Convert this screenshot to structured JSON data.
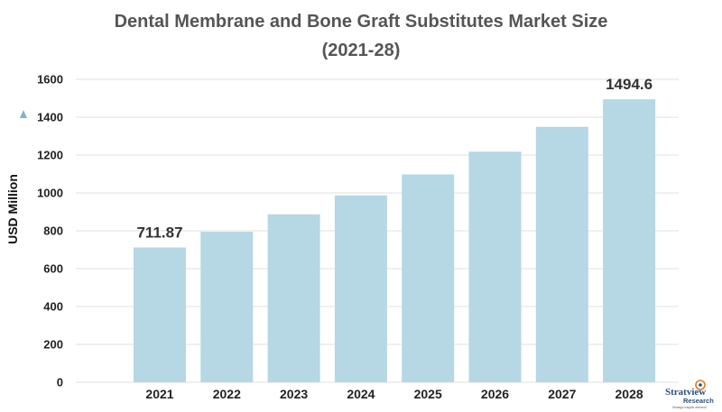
{
  "chart_data": {
    "type": "bar",
    "title": "Dental Membrane and Bone Graft Substitutes Market Size",
    "subtitle": "(2021-28)",
    "ylabel": "USD Million",
    "xlabel": "",
    "categories": [
      "2021",
      "2022",
      "2023",
      "2024",
      "2025",
      "2026",
      "2027",
      "2028"
    ],
    "values": [
      711.87,
      795,
      887,
      987,
      1098,
      1218,
      1349,
      1494.6
    ],
    "data_labels": [
      {
        "category": "2021",
        "text": "711.87"
      },
      {
        "category": "2028",
        "text": "1494.6"
      }
    ],
    "ylim": [
      0,
      1600
    ],
    "yticks": [
      "0",
      "200",
      "400",
      "600",
      "800",
      "1000",
      "1200",
      "1400",
      "1600"
    ],
    "grid": true,
    "bar_color": "#b6d7e4",
    "grid_color": "#e2e2e2"
  },
  "branding": {
    "logo_name": "Stratview",
    "logo_sub": "Research",
    "logo_tag": "Strategic insights delivered"
  }
}
